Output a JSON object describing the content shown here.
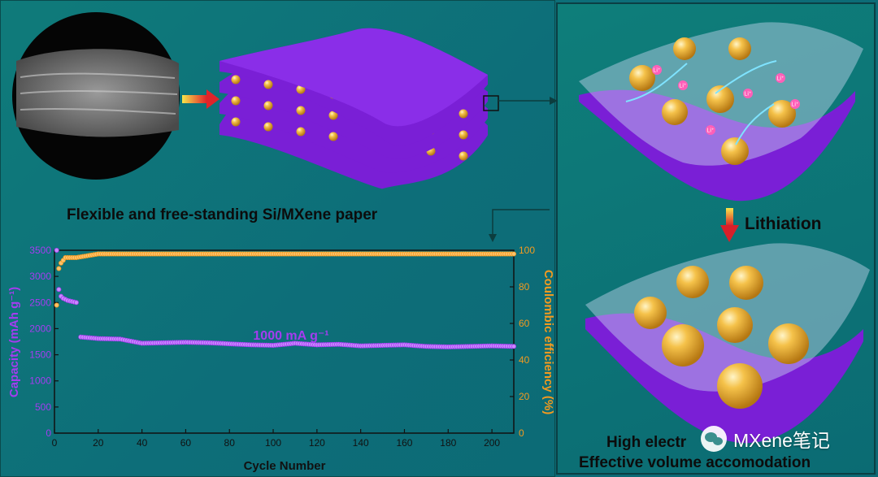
{
  "labels": {
    "paper_caption": "Flexible and free-standing Si/MXene paper",
    "lithiation": "Lithiation",
    "bottom_line1": "High electr",
    "bottom_line2": "Effective volume accomodation",
    "li_ion": "Li⁺"
  },
  "watermark": {
    "text": "MXene笔记"
  },
  "colors": {
    "capacity": "#a53cf0",
    "efficiency": "#f39a1f",
    "mxene": "#7a1fd6",
    "silicon": "#f2b43a",
    "background": "#0f7b7a"
  },
  "chart_data": {
    "type": "scatter",
    "title": "",
    "annotation": "1000 mA g⁻¹",
    "xlabel": "Cycle Number",
    "ylabel_left": "Capacity (mAh g⁻¹)",
    "ylabel_right": "Coulombic efficiency (%)",
    "xlim": [
      0,
      210
    ],
    "ylim_left": [
      0,
      3500
    ],
    "ylim_right": [
      0,
      100
    ],
    "x_ticks": [
      "0",
      "20",
      "40",
      "60",
      "80",
      "100",
      "120",
      "140",
      "160",
      "180",
      "200"
    ],
    "y_ticks_left": [
      "0",
      "500",
      "1000",
      "1500",
      "2000",
      "2500",
      "3000",
      "3500"
    ],
    "y_ticks_right": [
      "0",
      "20",
      "40",
      "60",
      "80",
      "100"
    ],
    "grid": false,
    "series": [
      {
        "name": "Capacity",
        "axis": "left",
        "points": [
          [
            1,
            3500
          ],
          [
            2,
            2750
          ],
          [
            3,
            2620
          ],
          [
            4,
            2580
          ],
          [
            5,
            2560
          ],
          [
            6,
            2540
          ],
          [
            7,
            2530
          ],
          [
            8,
            2520
          ],
          [
            9,
            2510
          ],
          [
            10,
            2500
          ],
          [
            12,
            1840
          ],
          [
            20,
            1810
          ],
          [
            30,
            1800
          ],
          [
            40,
            1720
          ],
          [
            50,
            1730
          ],
          [
            60,
            1740
          ],
          [
            70,
            1730
          ],
          [
            80,
            1710
          ],
          [
            90,
            1690
          ],
          [
            100,
            1680
          ],
          [
            110,
            1720
          ],
          [
            120,
            1690
          ],
          [
            130,
            1700
          ],
          [
            140,
            1670
          ],
          [
            150,
            1680
          ],
          [
            160,
            1690
          ],
          [
            170,
            1660
          ],
          [
            180,
            1650
          ],
          [
            190,
            1660
          ],
          [
            200,
            1670
          ],
          [
            210,
            1660
          ]
        ]
      },
      {
        "name": "Coulombic efficiency",
        "axis": "right",
        "points": [
          [
            1,
            70
          ],
          [
            2,
            90
          ],
          [
            3,
            93
          ],
          [
            5,
            96
          ],
          [
            10,
            96
          ],
          [
            20,
            98
          ],
          [
            40,
            98
          ],
          [
            60,
            98
          ],
          [
            80,
            98
          ],
          [
            100,
            98
          ],
          [
            120,
            98
          ],
          [
            140,
            98
          ],
          [
            160,
            98
          ],
          [
            180,
            98
          ],
          [
            200,
            98
          ],
          [
            210,
            98
          ]
        ]
      }
    ]
  }
}
